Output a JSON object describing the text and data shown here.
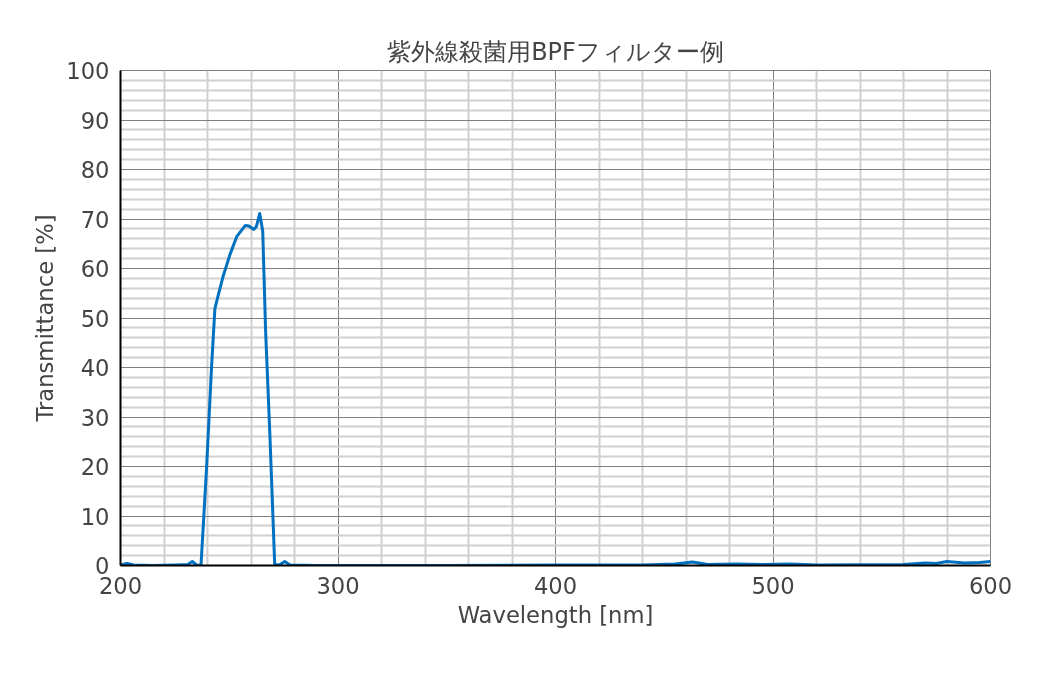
{
  "chart_data": {
    "type": "line",
    "title": "紫外線殺菌用BPFフィルター例",
    "xlabel": "Wavelength [nm]",
    "ylabel": "Transmittance [%]",
    "series": [
      {
        "color": "#0070c0",
        "x": [
          200,
          203,
          206,
          215,
          225,
          231,
          233,
          235,
          237,
          239.5,
          241.9,
          243.4,
          245,
          247.3,
          250.4,
          253.5,
          257.4,
          259,
          261.2,
          262.5,
          264,
          265.4,
          266.7,
          268.7,
          270.9,
          273,
          275.5,
          278,
          290,
          350,
          400,
          440,
          455,
          463,
          470,
          483,
          495,
          508,
          520,
          560,
          570,
          575,
          580,
          588,
          595,
          600
        ],
        "values": [
          0.1,
          0.4,
          0.1,
          0,
          0.1,
          0.2,
          0.8,
          0.1,
          0,
          19.1,
          40.4,
          51.9,
          54.7,
          58.6,
          62.9,
          66.5,
          68.7,
          68.6,
          67.9,
          68.5,
          71.1,
          67.5,
          47.6,
          26.2,
          0.2,
          0.1,
          0.8,
          0.1,
          0,
          0,
          0.1,
          0.1,
          0.3,
          0.7,
          0.2,
          0.3,
          0.2,
          0.3,
          0.1,
          0.2,
          0.5,
          0.4,
          0.8,
          0.5,
          0.6,
          0.8
        ]
      }
    ],
    "xlim": [
      200,
      600
    ],
    "ylim": [
      0,
      100
    ],
    "xticks": [
      200,
      300,
      400,
      500,
      600
    ],
    "yticks": [
      0,
      10,
      20,
      30,
      40,
      50,
      60,
      70,
      80,
      90,
      100
    ],
    "grid": true,
    "line_style": "solid",
    "marker": "none"
  }
}
